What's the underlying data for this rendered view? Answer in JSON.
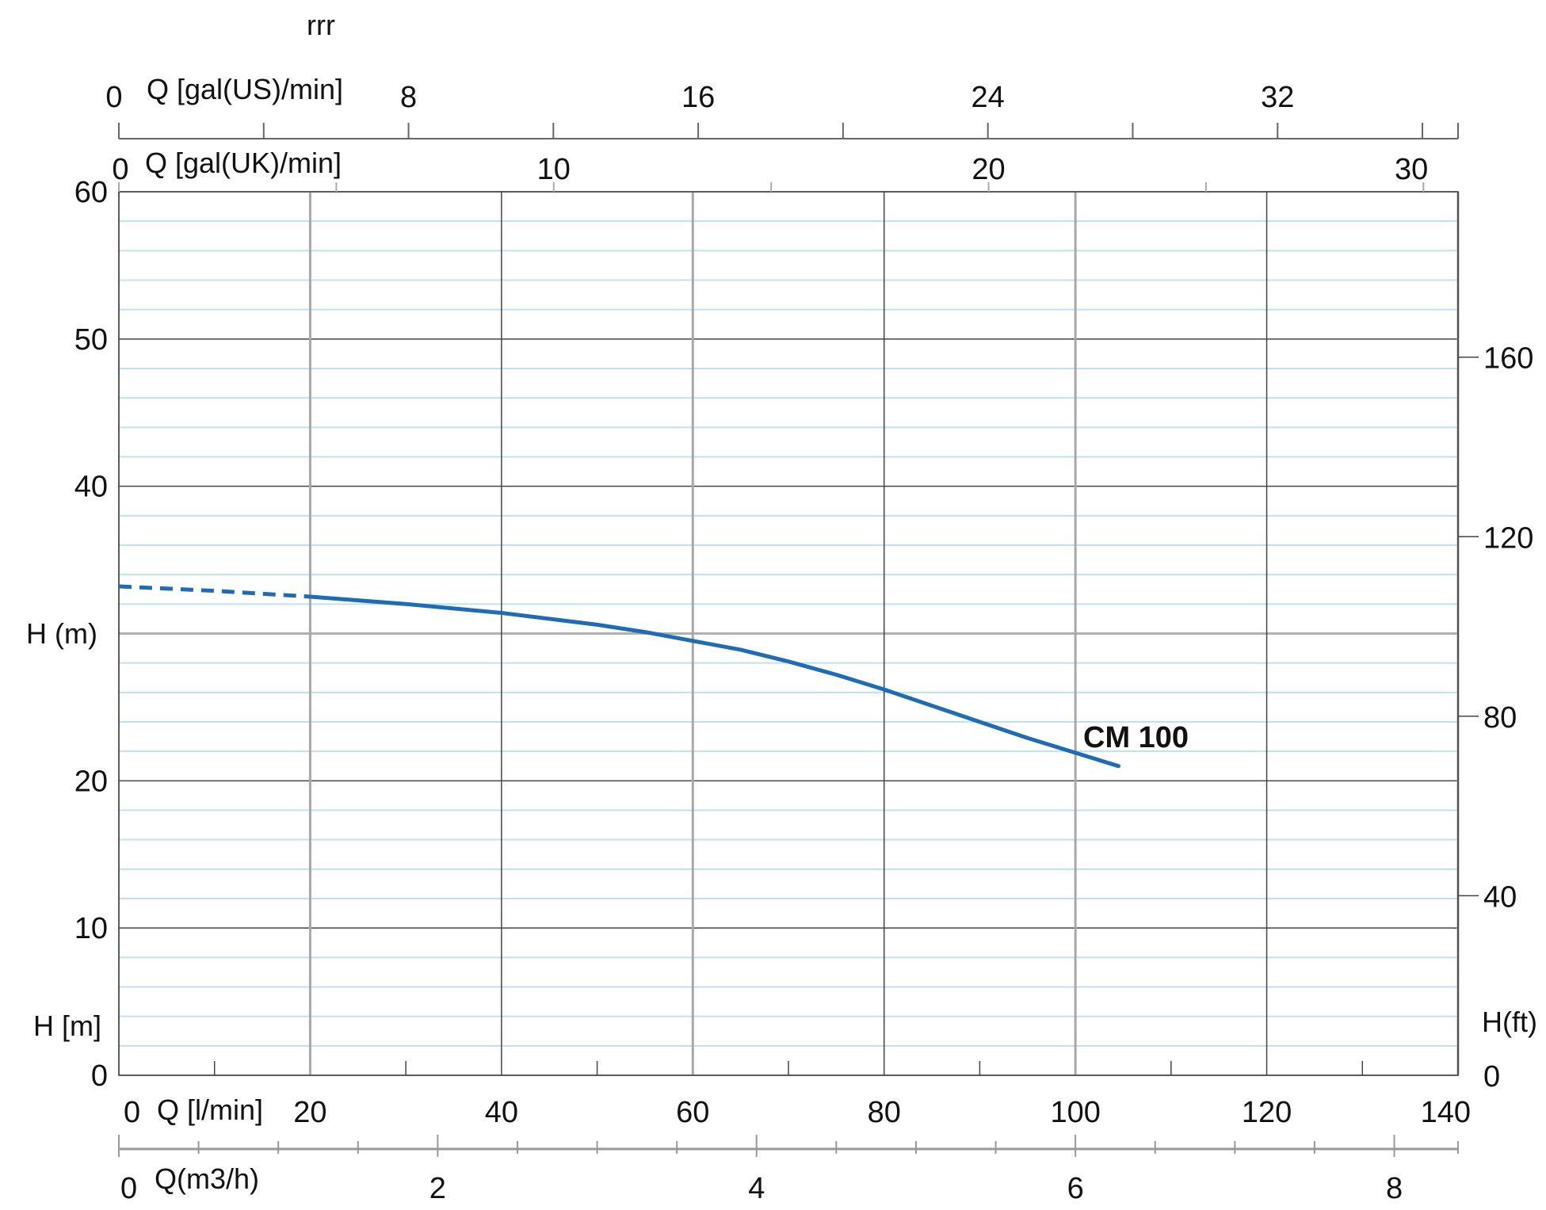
{
  "title": "rrr",
  "chart_data": {
    "type": "line",
    "title": "rrr",
    "xlabel": "Q [l/min]",
    "ylabel": "H (m)",
    "xlim": [
      0,
      140
    ],
    "ylim": [
      0,
      60
    ],
    "grid": true,
    "y_ticks": [
      0,
      10,
      20,
      30,
      40,
      50,
      60
    ],
    "y_tick_labels": [
      "0",
      "10",
      "20",
      "",
      "40",
      "50",
      "60"
    ],
    "y_unit_label": "H [m]",
    "x_ticks": [
      0,
      20,
      40,
      60,
      80,
      100,
      120,
      140
    ],
    "x_tick_labels": [
      "0",
      "20",
      "40",
      "60",
      "80",
      "100",
      "120",
      "140"
    ],
    "secondary_axes": {
      "right": {
        "label": "H(ft)",
        "ticks": [
          0,
          40,
          80,
          120,
          160
        ],
        "tick_labels": [
          "0",
          "40",
          "80",
          "120",
          "160"
        ]
      },
      "bottom_m3h": {
        "label": "Q(m3/h)",
        "ticks": [
          0,
          2,
          4,
          6,
          8
        ],
        "tick_labels": [
          "0",
          "2",
          "4",
          "6",
          "8"
        ],
        "minor_step": 1
      },
      "top_gal_us": {
        "label": "Q [gal(US)/min]",
        "ticks": [
          0,
          8,
          16,
          24,
          32
        ],
        "tick_labels": [
          "0",
          "8",
          "16",
          "24",
          "32"
        ],
        "minor_step": 4
      },
      "top_gal_uk": {
        "label": "Q [gal(UK)/min]",
        "ticks": [
          0,
          10,
          20,
          30
        ],
        "tick_labels": [
          "0",
          "10",
          "20",
          "30"
        ],
        "minor_step": 5
      }
    },
    "series": [
      {
        "name": "CM 100",
        "color": "#1f6bb5",
        "dashed_until_x": 20,
        "x": [
          0,
          10,
          20,
          30,
          40,
          50,
          55,
          60,
          65,
          70,
          75,
          80,
          85,
          90,
          95,
          100,
          104.5
        ],
        "y": [
          33.2,
          32.9,
          32.5,
          32.0,
          31.4,
          30.6,
          30.1,
          29.5,
          28.9,
          28.1,
          27.2,
          26.2,
          25.1,
          24.0,
          22.9,
          21.9,
          21.0
        ]
      }
    ]
  }
}
